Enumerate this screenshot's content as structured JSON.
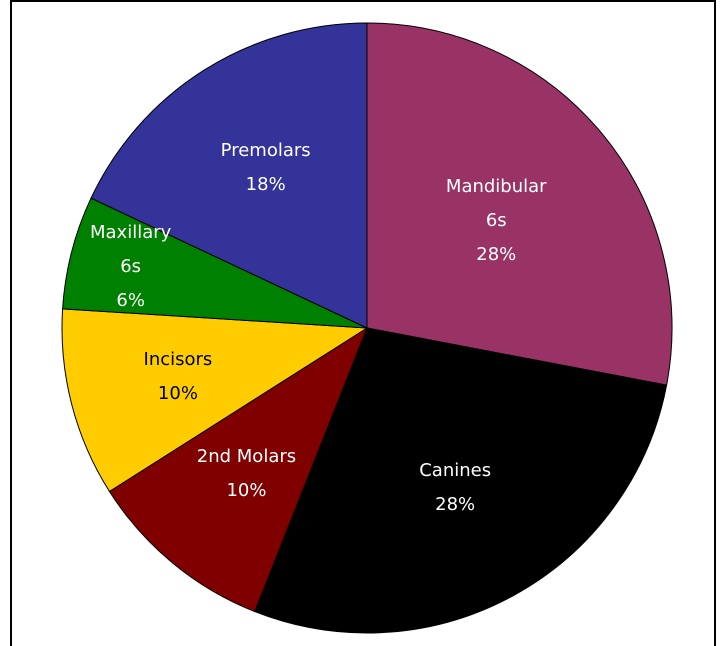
{
  "chart_data": {
    "type": "pie",
    "categories": [
      "Mandibular\n6s",
      "Canines",
      "2nd Molars",
      "Incisors",
      "Maxillary\n6s",
      "Premolars"
    ],
    "values": [
      28,
      28,
      10,
      10,
      6,
      18
    ],
    "value_labels": [
      "28%",
      "28%",
      "10%",
      "10%",
      "6%",
      "18%"
    ],
    "colors": [
      "#993366",
      "#000000",
      "#800000",
      "#ffcc00",
      "#008000",
      "#333399"
    ]
  }
}
